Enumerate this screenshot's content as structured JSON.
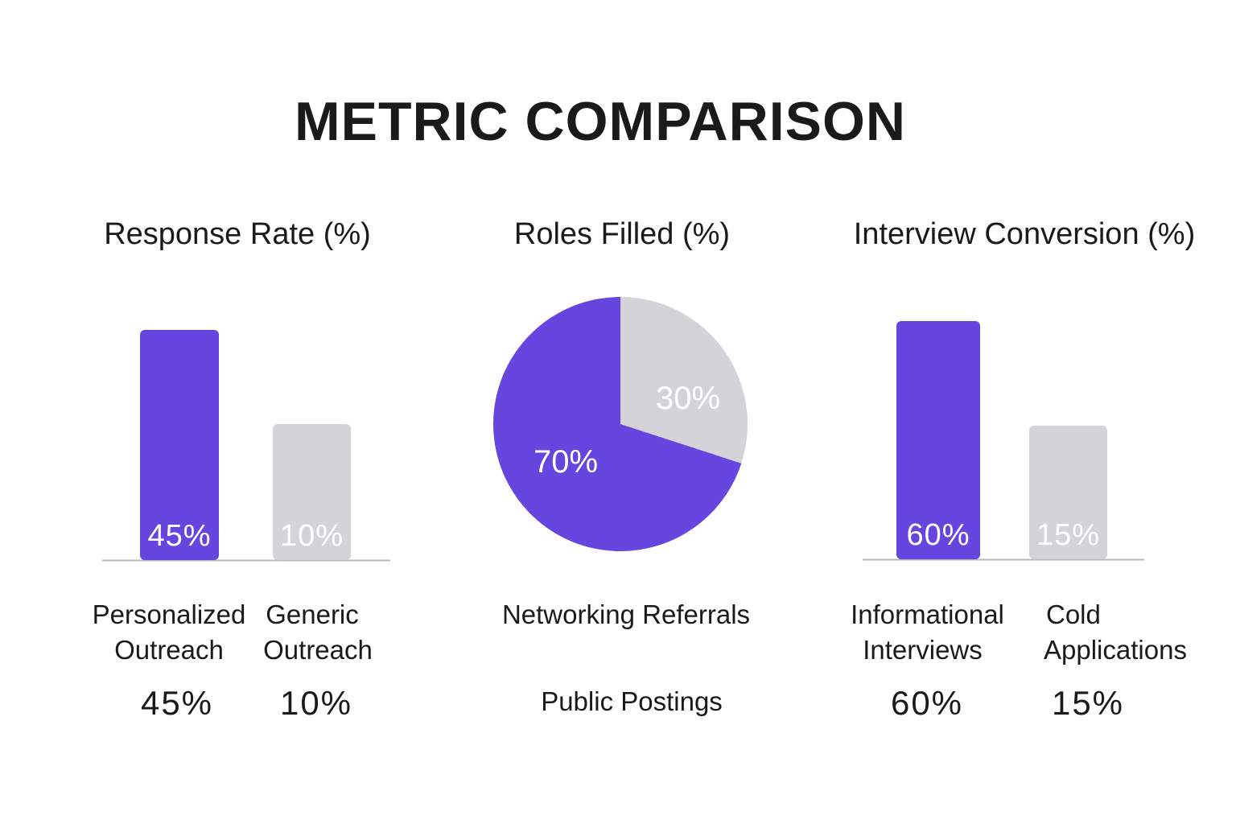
{
  "title": "METRIC COMPARISON",
  "colors": {
    "primary": "#6746e0",
    "secondary": "#d4d4d8",
    "baseline": "#b8b8bc"
  },
  "chart_data": [
    {
      "type": "bar",
      "title": "Response Rate (%)",
      "categories": [
        "Personalized Outreach",
        "Generic Outreach"
      ],
      "category_lines": [
        [
          "Personalized",
          "Outreach"
        ],
        [
          "Generic",
          "Outreach"
        ]
      ],
      "values": [
        45,
        10
      ],
      "labels": [
        "45%",
        "10%"
      ],
      "value_labels": [
        "45%",
        "10%"
      ]
    },
    {
      "type": "pie",
      "title": "Roles Filled (%)",
      "categories": [
        "Networking Referrals",
        "Public Postings"
      ],
      "values": [
        70,
        30
      ],
      "labels": [
        "70%",
        "30%"
      ]
    },
    {
      "type": "bar",
      "title": "Interview Conversion (%)",
      "categories": [
        "Informational Interviews",
        "Cold Applications"
      ],
      "category_lines": [
        [
          "Informational",
          "Interviews"
        ],
        [
          "Cold",
          "Applications"
        ]
      ],
      "values": [
        60,
        15
      ],
      "labels": [
        "60%",
        "15%"
      ],
      "value_labels": [
        "60%",
        "15%"
      ]
    }
  ]
}
